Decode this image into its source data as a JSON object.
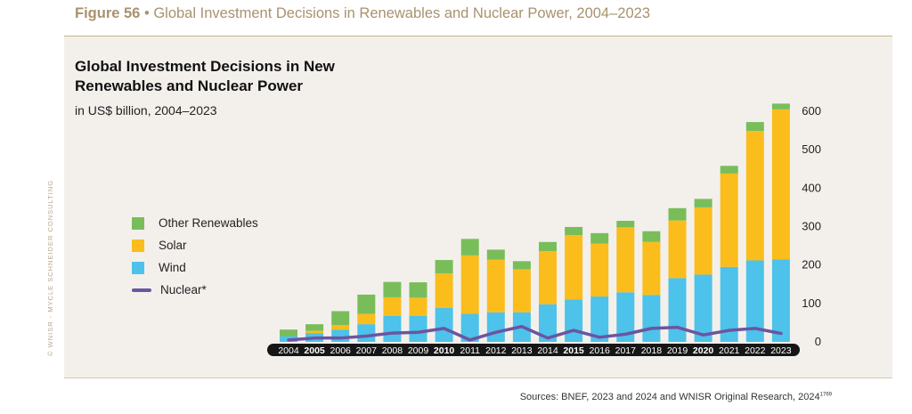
{
  "figure": {
    "number": "Figure 56",
    "separator": "•",
    "title": "Global Investment Decisions in Renewables and Nuclear Power, 2004–2023"
  },
  "watermark": "© WNISR - MYCLE SCHNEIDER CONSULTING",
  "sources": {
    "text": "Sources: BNEF, 2023 and 2024 and WNISR Original Research, 2024",
    "footnote": "1769"
  },
  "colors": {
    "other_renewables": "#79bd5b",
    "solar": "#fbbd1c",
    "wind": "#4dc2ea",
    "nuclear": "#6b55a0"
  },
  "chart_data": {
    "type": "bar",
    "stacked": true,
    "title": "Global Investment Decisions in New Renewables and Nuclear Power",
    "subtitle": "in US$ billion, 2004–2023",
    "xlabel": "",
    "ylabel": "",
    "ylim": [
      0,
      600
    ],
    "yticks": [
      0,
      100,
      200,
      300,
      400,
      500,
      600
    ],
    "y_axis_position": "right",
    "grid": false,
    "legend_position": "left",
    "categories": [
      "2004",
      "2005",
      "2006",
      "2007",
      "2008",
      "2009",
      "2010",
      "2011",
      "2012",
      "2013",
      "2014",
      "2015",
      "2016",
      "2017",
      "2018",
      "2019",
      "2020",
      "2021",
      "2022",
      "2023"
    ],
    "highlighted_categories": [
      "2005",
      "2010",
      "2015",
      "2020"
    ],
    "series": [
      {
        "name": "Wind",
        "kind": "bar",
        "values": [
          15,
          23,
          32,
          46,
          68,
          68,
          88,
          73,
          77,
          77,
          98,
          110,
          118,
          129,
          122,
          166,
          175,
          195,
          212,
          215
        ]
      },
      {
        "name": "Solar",
        "kind": "bar",
        "values": [
          0,
          6,
          12,
          27,
          48,
          47,
          90,
          152,
          137,
          112,
          138,
          168,
          138,
          169,
          138,
          150,
          175,
          243,
          337,
          390
        ]
      },
      {
        "name": "Other Renewables",
        "kind": "bar",
        "values": [
          17,
          17,
          36,
          50,
          40,
          40,
          35,
          43,
          26,
          21,
          24,
          21,
          27,
          17,
          28,
          32,
          22,
          20,
          23,
          15
        ]
      },
      {
        "name": "Nuclear*",
        "kind": "line",
        "values": [
          5,
          10,
          10,
          15,
          23,
          25,
          35,
          5,
          25,
          40,
          10,
          30,
          12,
          20,
          35,
          38,
          18,
          30,
          35,
          22
        ]
      }
    ]
  }
}
